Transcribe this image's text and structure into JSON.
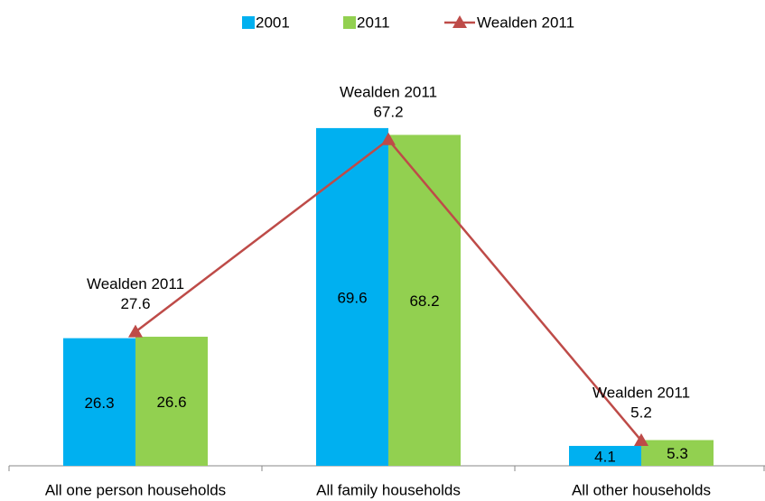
{
  "chart_data": {
    "type": "bar",
    "categories": [
      "All one person households",
      "All family households",
      "All other households"
    ],
    "series": [
      {
        "name": "2001",
        "type": "bar",
        "color": "#00b0f0",
        "values": [
          26.3,
          69.6,
          4.1
        ]
      },
      {
        "name": "2011",
        "type": "bar",
        "color": "#92d050",
        "values": [
          26.6,
          68.2,
          5.3
        ]
      },
      {
        "name": "Wealden 2011",
        "type": "line",
        "color": "#be4b48",
        "values": [
          27.6,
          67.2,
          5.2
        ]
      }
    ],
    "ylim": [
      0,
      80
    ],
    "legend": "top"
  }
}
